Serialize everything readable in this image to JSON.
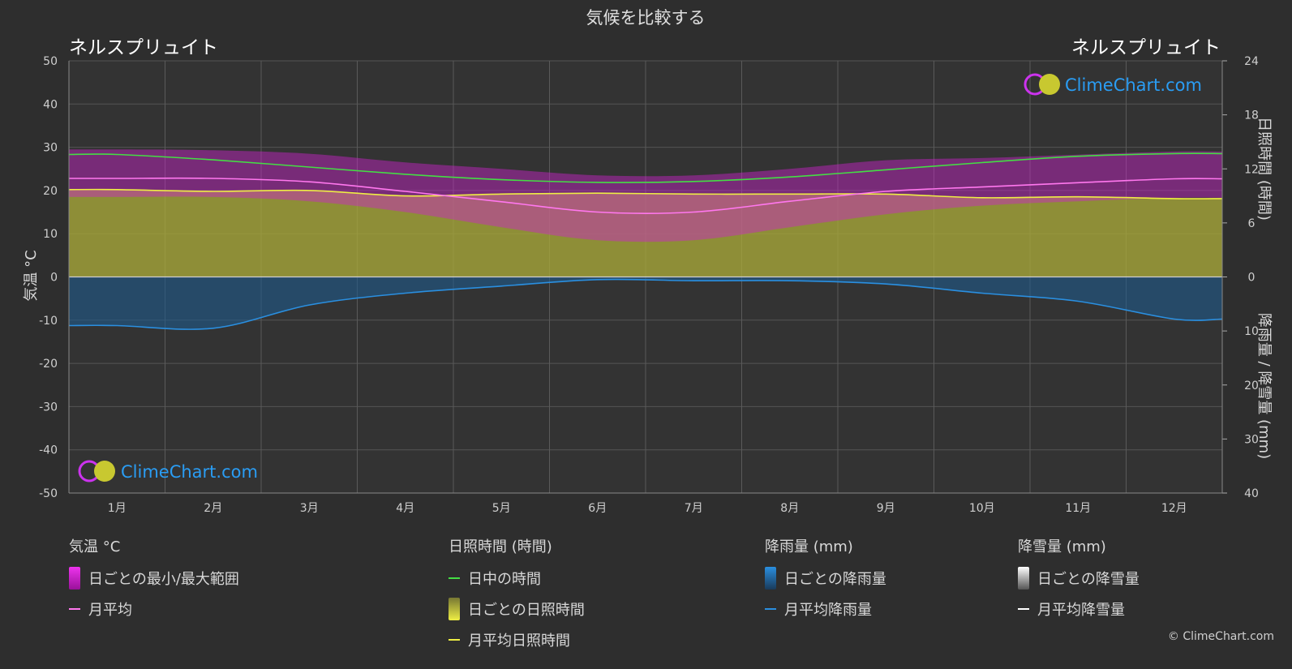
{
  "title": "気候を比較する",
  "location_left": "ネルスプリュイト",
  "location_right": "ネルスプリュイト",
  "watermark": "ClimeChart.com",
  "copyright": "© ClimeChart.com",
  "colors": {
    "background": "#2e2e2e",
    "temp_range": "#cc22cc",
    "temp_mean": "#ff77ee",
    "daylight": "#44dd44",
    "sunshine_fill": "#a8a838",
    "sunshine_mean": "#eeee44",
    "rain_fill": "#1e5a8c",
    "rain_mean": "#2a8fe0",
    "snow_mean": "#ffffff",
    "brand": "#2a9df4"
  },
  "legend": {
    "temperature": {
      "title": "気温 °C",
      "range": "日ごとの最小/最大範囲",
      "mean": "月平均"
    },
    "sunshine": {
      "title": "日照時間 (時間)",
      "daylight": "日中の時間",
      "daily": "日ごとの日照時間",
      "mean": "月平均日照時間"
    },
    "rain": {
      "title": "降雨量 (mm)",
      "daily": "日ごとの降雨量",
      "mean": "月平均降雨量"
    },
    "snow": {
      "title": "降雪量 (mm)",
      "daily": "日ごとの降雪量",
      "mean": "月平均降雪量"
    }
  },
  "chart_data": {
    "type": "line",
    "title": "気候を比較する",
    "categories": [
      "1月",
      "2月",
      "3月",
      "4月",
      "5月",
      "6月",
      "7月",
      "8月",
      "9月",
      "10月",
      "11月",
      "12月"
    ],
    "axes": {
      "left": {
        "label": "気温 °C",
        "min": -50,
        "max": 50,
        "ticks": [
          50,
          40,
          30,
          20,
          10,
          0,
          -10,
          -20,
          -30,
          -40,
          -50
        ]
      },
      "right_top": {
        "label": "日照時間 (時間)",
        "min": 0,
        "max": 24,
        "ticks": [
          24,
          18,
          12,
          6,
          0
        ]
      },
      "right_bottom": {
        "label": "降雨量 / 降雪量 (mm)",
        "min": 0,
        "max": 40,
        "ticks": [
          0,
          10,
          20,
          30,
          40
        ]
      }
    },
    "grid": true,
    "series": [
      {
        "name": "日中の時間",
        "unit": "hours",
        "values": [
          13.6,
          13.0,
          12.2,
          11.4,
          10.8,
          10.5,
          10.6,
          11.1,
          11.9,
          12.7,
          13.4,
          13.7
        ]
      },
      {
        "name": "月平均日照時間",
        "unit": "hours",
        "values": [
          9.7,
          9.5,
          9.6,
          9.0,
          9.2,
          9.3,
          9.2,
          9.2,
          9.2,
          8.8,
          8.9,
          8.7
        ]
      },
      {
        "name": "月平均",
        "unit": "°C",
        "values": [
          22.8,
          22.8,
          22.0,
          19.8,
          17.4,
          15.0,
          15.0,
          17.5,
          19.8,
          20.8,
          21.8,
          22.7
        ]
      },
      {
        "name": "日ごとの最小/最大範囲",
        "unit": "°C",
        "min": [
          18.5,
          18.5,
          17.5,
          15.0,
          11.5,
          8.5,
          8.5,
          11.5,
          14.5,
          16.5,
          17.5,
          18.3
        ],
        "max": [
          29.5,
          29.3,
          28.5,
          26.5,
          25.0,
          23.5,
          23.5,
          25.0,
          27.0,
          27.5,
          28.3,
          29.0
        ]
      },
      {
        "name": "月平均降雨量",
        "unit": "mm",
        "values": [
          9.0,
          9.5,
          5.2,
          3.0,
          1.7,
          0.5,
          0.7,
          0.7,
          1.3,
          3.0,
          4.5,
          7.8
        ]
      },
      {
        "name": "月平均降雪量",
        "unit": "mm",
        "values": [
          0,
          0,
          0,
          0,
          0,
          0,
          0,
          0,
          0,
          0,
          0,
          0
        ]
      }
    ]
  }
}
